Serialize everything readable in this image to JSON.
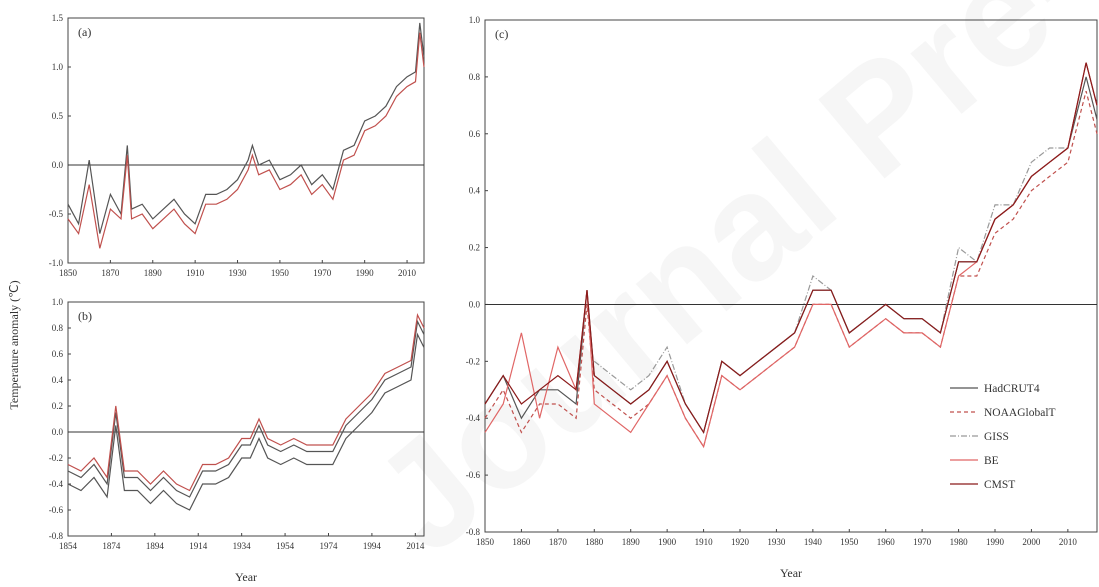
{
  "figure": {
    "ylabel": "Temperature anomaly (℃)",
    "watermark": "Journal Pre-proofs"
  },
  "chart_data": [
    {
      "id": "a",
      "type": "line",
      "panel_label": "(a)",
      "xlabel": "",
      "ylabel": "Temperature anomaly (℃)",
      "xlim": [
        1850,
        2018
      ],
      "ylim": [
        -1.0,
        1.5
      ],
      "xticks": [
        1850,
        1870,
        1890,
        1910,
        1930,
        1950,
        1970,
        1990,
        2010
      ],
      "yticks": [
        -1.0,
        -0.5,
        0.0,
        0.5,
        1.0,
        1.5
      ],
      "ytick_labels": [
        "-1.0",
        "-0.5",
        "0.0",
        "0.5",
        "1.0",
        "1.5"
      ],
      "zero_line": 0.0,
      "series": [
        {
          "x": [
            1850,
            1855,
            1860,
            1865,
            1870,
            1875,
            1878,
            1880,
            1885,
            1890,
            1895,
            1900,
            1905,
            1910,
            1915,
            1920,
            1925,
            1930,
            1935,
            1937,
            1940,
            1945,
            1950,
            1955,
            1960,
            1965,
            1970,
            1975,
            1980,
            1985,
            1990,
            1995,
            2000,
            2005,
            2010,
            2014,
            2016,
            2018
          ],
          "y": [
            -0.4,
            -0.6,
            0.05,
            -0.7,
            -0.3,
            -0.5,
            0.2,
            -0.45,
            -0.4,
            -0.55,
            -0.45,
            -0.35,
            -0.5,
            -0.6,
            -0.3,
            -0.3,
            -0.25,
            -0.15,
            0.05,
            0.2,
            0.0,
            0.05,
            -0.15,
            -0.1,
            0.0,
            -0.2,
            -0.1,
            -0.25,
            0.15,
            0.2,
            0.45,
            0.5,
            0.6,
            0.8,
            0.9,
            0.95,
            1.45,
            1.1
          ],
          "color": "#555555"
        },
        {
          "x": [
            1850,
            1855,
            1860,
            1865,
            1870,
            1875,
            1878,
            1880,
            1885,
            1890,
            1895,
            1900,
            1905,
            1910,
            1915,
            1920,
            1925,
            1930,
            1935,
            1937,
            1940,
            1945,
            1950,
            1955,
            1960,
            1965,
            1970,
            1975,
            1980,
            1985,
            1990,
            1995,
            2000,
            2005,
            2010,
            2014,
            2016,
            2018
          ],
          "y": [
            -0.55,
            -0.7,
            -0.2,
            -0.85,
            -0.45,
            -0.55,
            0.1,
            -0.55,
            -0.5,
            -0.65,
            -0.55,
            -0.45,
            -0.6,
            -0.7,
            -0.4,
            -0.4,
            -0.35,
            -0.25,
            -0.05,
            0.1,
            -0.1,
            -0.05,
            -0.25,
            -0.2,
            -0.1,
            -0.3,
            -0.2,
            -0.35,
            0.05,
            0.1,
            0.35,
            0.4,
            0.5,
            0.7,
            0.8,
            0.85,
            1.35,
            1.0
          ],
          "color": "#c0504d"
        }
      ]
    },
    {
      "id": "b",
      "type": "line",
      "panel_label": "(b)",
      "xlabel": "Year",
      "ylabel": "",
      "xlim": [
        1854,
        2018
      ],
      "ylim": [
        -0.8,
        1.0
      ],
      "xticks": [
        1854,
        1874,
        1894,
        1914,
        1934,
        1954,
        1974,
        1994,
        2014
      ],
      "yticks": [
        -0.8,
        -0.6,
        -0.4,
        -0.2,
        0.0,
        0.2,
        0.4,
        0.6,
        0.8,
        1.0
      ],
      "ytick_labels": [
        "-0.8",
        "-0.6",
        "-0.4",
        "-0.2",
        "0.0",
        "0.2",
        "0.4",
        "0.6",
        "0.8",
        "1.0"
      ],
      "zero_line": 0.0,
      "series": [
        {
          "x": [
            1854,
            1860,
            1866,
            1872,
            1876,
            1880,
            1886,
            1892,
            1898,
            1904,
            1910,
            1916,
            1922,
            1928,
            1934,
            1938,
            1942,
            1946,
            1952,
            1958,
            1964,
            1970,
            1976,
            1982,
            1988,
            1994,
            2000,
            2006,
            2012,
            2015,
            2018
          ],
          "y": [
            -0.3,
            -0.35,
            -0.25,
            -0.4,
            0.15,
            -0.35,
            -0.35,
            -0.45,
            -0.35,
            -0.45,
            -0.5,
            -0.3,
            -0.3,
            -0.25,
            -0.1,
            -0.1,
            0.05,
            -0.1,
            -0.15,
            -0.1,
            -0.15,
            -0.15,
            -0.15,
            0.05,
            0.15,
            0.25,
            0.4,
            0.45,
            0.5,
            0.85,
            0.75
          ],
          "color": "#555555"
        },
        {
          "x": [
            1854,
            1860,
            1866,
            1872,
            1876,
            1880,
            1886,
            1892,
            1898,
            1904,
            1910,
            1916,
            1922,
            1928,
            1934,
            1938,
            1942,
            1946,
            1952,
            1958,
            1964,
            1970,
            1976,
            1982,
            1988,
            1994,
            2000,
            2006,
            2012,
            2015,
            2018
          ],
          "y": [
            -0.25,
            -0.3,
            -0.2,
            -0.35,
            0.2,
            -0.3,
            -0.3,
            -0.4,
            -0.3,
            -0.4,
            -0.45,
            -0.25,
            -0.25,
            -0.2,
            -0.05,
            -0.05,
            0.1,
            -0.05,
            -0.1,
            -0.05,
            -0.1,
            -0.1,
            -0.1,
            0.1,
            0.2,
            0.3,
            0.45,
            0.5,
            0.55,
            0.9,
            0.8
          ],
          "color": "#c0504d"
        },
        {
          "x": [
            1854,
            1860,
            1866,
            1872,
            1876,
            1880,
            1886,
            1892,
            1898,
            1904,
            1910,
            1916,
            1922,
            1928,
            1934,
            1938,
            1942,
            1946,
            1952,
            1958,
            1964,
            1970,
            1976,
            1982,
            1988,
            1994,
            2000,
            2006,
            2012,
            2015,
            2018
          ],
          "y": [
            -0.4,
            -0.45,
            -0.35,
            -0.5,
            0.05,
            -0.45,
            -0.45,
            -0.55,
            -0.45,
            -0.55,
            -0.6,
            -0.4,
            -0.4,
            -0.35,
            -0.2,
            -0.2,
            -0.05,
            -0.2,
            -0.25,
            -0.2,
            -0.25,
            -0.25,
            -0.25,
            -0.05,
            0.05,
            0.15,
            0.3,
            0.35,
            0.4,
            0.75,
            0.65
          ],
          "color": "#555555"
        }
      ]
    },
    {
      "id": "c",
      "type": "line",
      "panel_label": "(c)",
      "xlabel": "Year",
      "ylabel": "",
      "xlim": [
        1850,
        2018
      ],
      "ylim": [
        -0.8,
        1.0
      ],
      "xticks": [
        1850,
        1860,
        1870,
        1880,
        1890,
        1900,
        1910,
        1920,
        1930,
        1940,
        1950,
        1960,
        1970,
        1980,
        1990,
        2000,
        2010
      ],
      "yticks": [
        -0.8,
        -0.6,
        -0.4,
        -0.2,
        0.0,
        0.2,
        0.4,
        0.6,
        0.8,
        1.0
      ],
      "ytick_labels": [
        "-0.8",
        "-0.6",
        "-0.4",
        "-0.2",
        "0.0",
        "0.2",
        "0.4",
        "0.6",
        "0.8",
        "1.0"
      ],
      "zero_line": 0.0,
      "legend": "lower-right",
      "series": [
        {
          "name": "HadCRUT4",
          "style": "solid",
          "color": "#555555",
          "x": [
            1850,
            1855,
            1860,
            1865,
            1870,
            1875,
            1878,
            1880,
            1885,
            1890,
            1895,
            1900,
            1905,
            1910,
            1915,
            1920,
            1925,
            1930,
            1935,
            1940,
            1945,
            1950,
            1955,
            1960,
            1965,
            1970,
            1975,
            1980,
            1985,
            1990,
            1995,
            2000,
            2005,
            2010,
            2015,
            2018
          ],
          "y": [
            -0.35,
            -0.25,
            -0.4,
            -0.3,
            -0.3,
            -0.35,
            0.05,
            -0.25,
            -0.3,
            -0.35,
            -0.3,
            -0.2,
            -0.35,
            -0.45,
            -0.2,
            -0.25,
            -0.2,
            -0.15,
            -0.1,
            0.05,
            0.05,
            -0.1,
            -0.05,
            0.0,
            -0.05,
            -0.05,
            -0.1,
            0.15,
            0.15,
            0.3,
            0.35,
            0.45,
            0.5,
            0.55,
            0.8,
            0.65
          ]
        },
        {
          "name": "NOAAGlobalT",
          "style": "dashed",
          "color": "#c0504d",
          "x": [
            1850,
            1855,
            1860,
            1865,
            1870,
            1875,
            1878,
            1880,
            1885,
            1890,
            1895,
            1900,
            1905,
            1910,
            1915,
            1920,
            1925,
            1930,
            1935,
            1940,
            1945,
            1950,
            1955,
            1960,
            1965,
            1970,
            1975,
            1980,
            1985,
            1990,
            1995,
            2000,
            2005,
            2010,
            2015,
            2018
          ],
          "y": [
            -0.4,
            -0.3,
            -0.45,
            -0.35,
            -0.35,
            -0.4,
            0.0,
            -0.3,
            -0.35,
            -0.4,
            -0.35,
            -0.25,
            -0.4,
            -0.5,
            -0.25,
            -0.3,
            -0.25,
            -0.2,
            -0.15,
            0.0,
            0.0,
            -0.15,
            -0.1,
            -0.05,
            -0.1,
            -0.1,
            -0.15,
            0.1,
            0.1,
            0.25,
            0.3,
            0.4,
            0.45,
            0.5,
            0.75,
            0.6
          ]
        },
        {
          "name": "GISS",
          "style": "dash-dot",
          "color": "#999999",
          "x": [
            1880,
            1885,
            1890,
            1895,
            1900,
            1905,
            1910,
            1915,
            1920,
            1925,
            1930,
            1935,
            1940,
            1945,
            1950,
            1955,
            1960,
            1965,
            1970,
            1975,
            1980,
            1985,
            1990,
            1995,
            2000,
            2005,
            2010,
            2015,
            2018
          ],
          "y": [
            -0.2,
            -0.25,
            -0.3,
            -0.25,
            -0.15,
            -0.35,
            -0.45,
            -0.2,
            -0.25,
            -0.2,
            -0.15,
            -0.1,
            0.1,
            0.05,
            -0.1,
            -0.05,
            0.0,
            -0.05,
            -0.05,
            -0.1,
            0.2,
            0.15,
            0.35,
            0.35,
            0.5,
            0.55,
            0.55,
            0.85,
            0.7
          ]
        },
        {
          "name": "BE",
          "style": "solid",
          "color": "#e06666",
          "x": [
            1850,
            1855,
            1860,
            1865,
            1870,
            1875,
            1878,
            1880,
            1885,
            1890,
            1895,
            1900,
            1905,
            1910,
            1915,
            1920,
            1925,
            1930,
            1935,
            1940,
            1945,
            1950,
            1955,
            1960,
            1965,
            1970,
            1975,
            1980,
            1985,
            1990,
            1995,
            2000,
            2005,
            2010,
            2015,
            2018
          ],
          "y": [
            -0.45,
            -0.35,
            -0.1,
            -0.4,
            -0.15,
            -0.3,
            0.05,
            -0.35,
            -0.4,
            -0.45,
            -0.35,
            -0.25,
            -0.4,
            -0.5,
            -0.25,
            -0.3,
            -0.25,
            -0.2,
            -0.15,
            0.0,
            0.0,
            -0.15,
            -0.1,
            -0.05,
            -0.1,
            -0.1,
            -0.15,
            0.1,
            0.15,
            0.3,
            0.35,
            0.45,
            0.5,
            0.55,
            0.85,
            0.7
          ]
        },
        {
          "name": "CMST",
          "style": "solid",
          "color": "#8b1a1a",
          "x": [
            1850,
            1855,
            1860,
            1865,
            1870,
            1875,
            1878,
            1880,
            1885,
            1890,
            1895,
            1900,
            1905,
            1910,
            1915,
            1920,
            1925,
            1930,
            1935,
            1940,
            1945,
            1950,
            1955,
            1960,
            1965,
            1970,
            1975,
            1980,
            1985,
            1990,
            1995,
            2000,
            2005,
            2010,
            2015,
            2018
          ],
          "y": [
            -0.35,
            -0.25,
            -0.35,
            -0.3,
            -0.25,
            -0.3,
            0.05,
            -0.25,
            -0.3,
            -0.35,
            -0.3,
            -0.2,
            -0.35,
            -0.45,
            -0.2,
            -0.25,
            -0.2,
            -0.15,
            -0.1,
            0.05,
            0.05,
            -0.1,
            -0.05,
            0.0,
            -0.05,
            -0.05,
            -0.1,
            0.15,
            0.15,
            0.3,
            0.35,
            0.45,
            0.5,
            0.55,
            0.85,
            0.7
          ]
        }
      ]
    }
  ]
}
